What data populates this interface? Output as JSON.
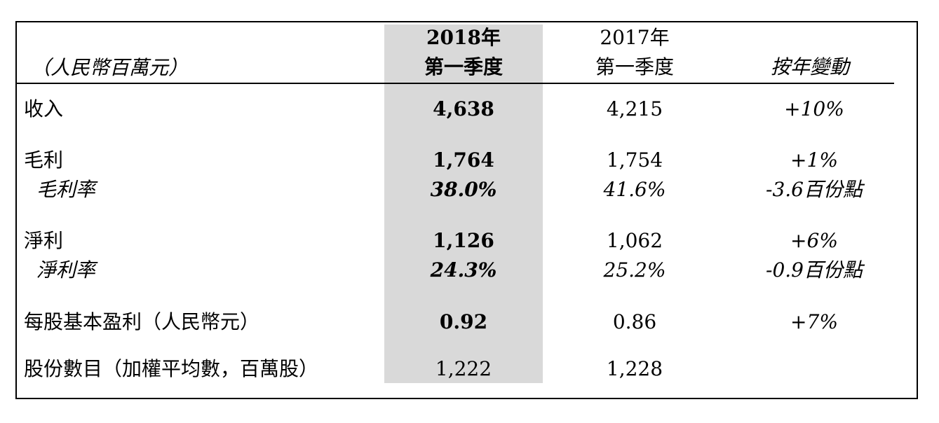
{
  "header": {
    "unit_label": "（人民幣百萬元）",
    "col_2018_year": "2018年",
    "col_2018_quarter": "第一季度",
    "col_2017_year": "2017年",
    "col_2017_quarter": "第一季度",
    "col_change": "按年變動"
  },
  "rows": {
    "revenue": {
      "label": "收入",
      "v2018": "4,638",
      "v2017": "4,215",
      "change": "+10%"
    },
    "gross_profit": {
      "label": "毛利",
      "v2018": "1,764",
      "v2017": "1,754",
      "change": "+1%"
    },
    "gross_margin": {
      "label": "毛利率",
      "v2018": "38.0%",
      "v2017": "41.6%",
      "change": "-3.6百份點"
    },
    "net_profit": {
      "label": "淨利",
      "v2018": "1,126",
      "v2017": "1,062",
      "change": "+6%"
    },
    "net_margin": {
      "label": "淨利率",
      "v2018": "24.3%",
      "v2017": "25.2%",
      "change": "-0.9百份點"
    },
    "eps": {
      "label": "每股基本盈利（人民幣元）",
      "v2018": "0.92",
      "v2017": "0.86",
      "change": "+7%"
    },
    "shares": {
      "label": "股份數目（加權平均數，百萬股）",
      "v2018": "1,222",
      "v2017": "1,228",
      "change": ""
    }
  }
}
